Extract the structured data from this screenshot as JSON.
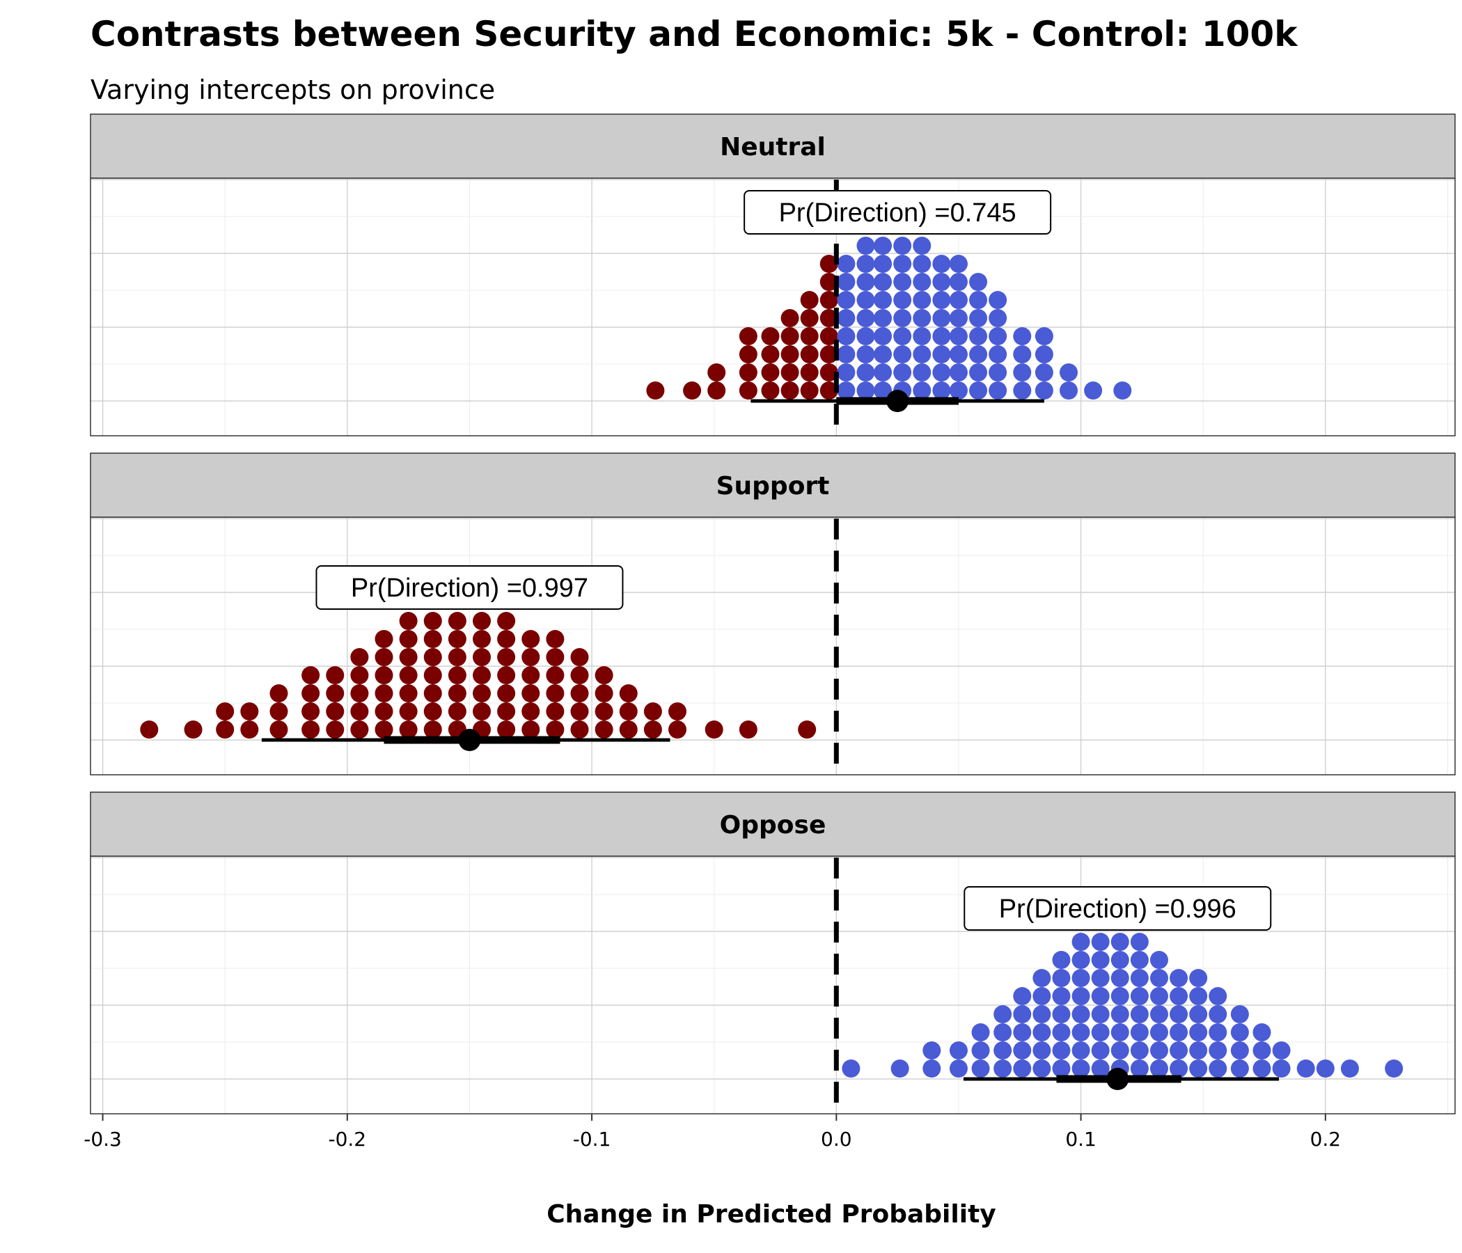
{
  "title": "Contrasts between Security and Economic: 5k - Control: 100k",
  "subtitle": "Varying intercepts on province",
  "xlabel": "Change in Predicted Probability",
  "colors": {
    "negative": "#7a0000",
    "positive": "#4a5bd6",
    "strip": "#cccccc"
  },
  "chart_data": {
    "type": "dotplot",
    "xlim": [
      -0.305,
      0.253
    ],
    "xticks": [
      -0.3,
      -0.2,
      -0.1,
      0.0,
      0.1,
      0.2
    ],
    "xtick_labels": [
      "-0.3",
      "-0.2",
      "-0.1",
      "0.0",
      "0.1",
      "0.2"
    ],
    "reference_line": 0,
    "grid": true,
    "panels": [
      {
        "name": "Neutral",
        "pd_label": "Pr(Direction) =0.745",
        "median": 0.025,
        "interval_66": [
          0.0,
          0.05
        ],
        "interval_95": [
          -0.035,
          0.085
        ],
        "dots": [
          [
            -0.074,
            1
          ],
          [
            -0.059,
            1
          ],
          [
            -0.049,
            2
          ],
          [
            -0.036,
            4
          ],
          [
            -0.027,
            4
          ],
          [
            -0.019,
            5
          ],
          [
            -0.011,
            6
          ],
          [
            -0.003,
            8
          ],
          [
            0.004,
            8
          ],
          [
            0.012,
            9
          ],
          [
            0.019,
            9
          ],
          [
            0.027,
            9
          ],
          [
            0.035,
            9
          ],
          [
            0.043,
            8
          ],
          [
            0.05,
            8
          ],
          [
            0.058,
            7
          ],
          [
            0.066,
            6
          ],
          [
            0.076,
            4
          ],
          [
            0.085,
            4
          ],
          [
            0.095,
            2
          ],
          [
            0.105,
            1
          ],
          [
            0.117,
            1
          ]
        ]
      },
      {
        "name": "Support",
        "pd_label": "Pr(Direction) =0.997",
        "median": -0.15,
        "interval_66": [
          -0.185,
          -0.113
        ],
        "interval_95": [
          -0.235,
          -0.068
        ],
        "dots": [
          [
            -0.281,
            1
          ],
          [
            -0.263,
            1
          ],
          [
            -0.25,
            2
          ],
          [
            -0.24,
            2
          ],
          [
            -0.228,
            3
          ],
          [
            -0.215,
            4
          ],
          [
            -0.205,
            4
          ],
          [
            -0.195,
            5
          ],
          [
            -0.185,
            6
          ],
          [
            -0.175,
            7
          ],
          [
            -0.165,
            7
          ],
          [
            -0.155,
            7
          ],
          [
            -0.145,
            7
          ],
          [
            -0.135,
            7
          ],
          [
            -0.125,
            6
          ],
          [
            -0.115,
            6
          ],
          [
            -0.105,
            5
          ],
          [
            -0.095,
            4
          ],
          [
            -0.085,
            3
          ],
          [
            -0.075,
            2
          ],
          [
            -0.065,
            2
          ],
          [
            -0.05,
            1
          ],
          [
            -0.036,
            1
          ],
          [
            -0.012,
            1
          ]
        ]
      },
      {
        "name": "Oppose",
        "pd_label": "Pr(Direction) =0.996",
        "median": 0.115,
        "interval_66": [
          0.09,
          0.141
        ],
        "interval_95": [
          0.052,
          0.181
        ],
        "dots": [
          [
            0.006,
            1
          ],
          [
            0.026,
            1
          ],
          [
            0.039,
            2
          ],
          [
            0.05,
            2
          ],
          [
            0.059,
            3
          ],
          [
            0.068,
            4
          ],
          [
            0.076,
            5
          ],
          [
            0.084,
            6
          ],
          [
            0.092,
            7
          ],
          [
            0.1,
            8
          ],
          [
            0.108,
            8
          ],
          [
            0.116,
            8
          ],
          [
            0.124,
            8
          ],
          [
            0.132,
            7
          ],
          [
            0.14,
            6
          ],
          [
            0.148,
            6
          ],
          [
            0.156,
            5
          ],
          [
            0.165,
            4
          ],
          [
            0.174,
            3
          ],
          [
            0.182,
            2
          ],
          [
            0.192,
            1
          ],
          [
            0.2,
            1
          ],
          [
            0.21,
            1
          ],
          [
            0.228,
            1
          ]
        ]
      }
    ]
  }
}
